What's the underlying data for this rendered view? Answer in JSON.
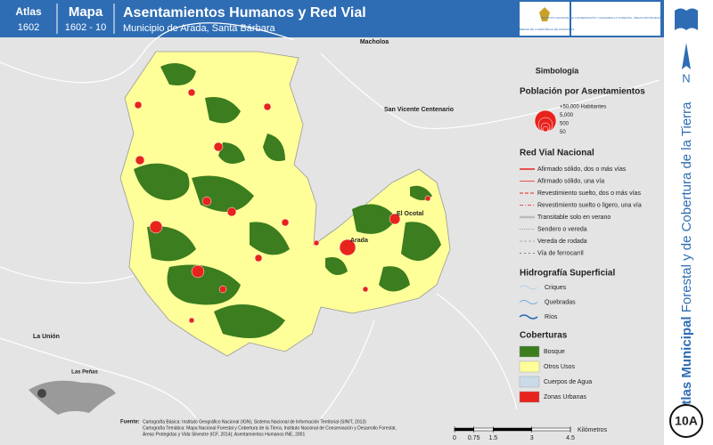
{
  "header": {
    "atlas_label": "Atlas",
    "atlas_code": "1602",
    "map_label": "Mapa",
    "map_code": "1602 - 10",
    "title": "Asentamientos Humanos y Red Vial",
    "subtitle": "Municipio de Arada, Santa Bárbara"
  },
  "logos": {
    "left": "GOBIERNO DE LA REPÚBLICA DE HONDURAS",
    "right": "INSTITUTO NACIONAL DE CONSERVACIÓN Y DESARROLLO FORESTAL, ÁREAS PROTEGIDAS Y VIDA SILVESTRE ICF"
  },
  "side": {
    "title_bold": "Atlas Municipal",
    "title_rest": "Forestal y de Cobertura de la Tierra",
    "north": "N",
    "page": "10A"
  },
  "map": {
    "places": [
      "Macholoa",
      "San Vicente Centenario",
      "La Unión",
      "Las Peñas",
      "Arada",
      "El Ocotal"
    ]
  },
  "legend": {
    "title": "Simbología",
    "population": {
      "title": "Población por Asentamientos",
      "sizes": [
        "+50,000 Habitantes",
        "5,000",
        "500",
        "50"
      ]
    },
    "roads": {
      "title": "Red Vial Nacional",
      "items": [
        "Afirmado sólido, dos o más vías",
        "Afirmado sólido, una vía",
        "Revestimiento suelto, dos o más vías",
        "Revestimiento suelto o ligero, una vía",
        "Transitable solo en verano",
        "Sendero o vereda",
        "Vereda de rodada",
        "Vía de ferrocarril"
      ]
    },
    "hydro": {
      "title": "Hidrografía Superficial",
      "items": [
        "Criques",
        "Quebradas",
        "Ríos"
      ]
    },
    "cover": {
      "title": "Coberturas",
      "items": [
        {
          "name": "Bosque",
          "color": "#3b7d1f"
        },
        {
          "name": "Otros Usos",
          "color": "#ffff99"
        },
        {
          "name": "Cuerpos de Agua",
          "color": "#c9dbe9"
        },
        {
          "name": "Zonas Urbanas",
          "color": "#e8231c"
        }
      ]
    }
  },
  "scale": {
    "ticks": [
      0,
      0.75,
      1.5,
      3,
      4.5
    ],
    "unit": "Kilómetros"
  },
  "source": {
    "label": "Fuente:",
    "lines": [
      "Cartografía Básica: Instituto Geográfico Nacional (IGN), Sistema Nacional de Información Territorial (SINIT, 2013)",
      "Cartografía Temática: Mapa Nacional Forestal y Cobertura de la Tierra, Instituto Nacional de Conservación y Desarrollo Forestal,",
      "Áreas Protegidas y Vida Silvestre (ICF, 2014); Asentamientos Humanos INE, 2001"
    ]
  }
}
